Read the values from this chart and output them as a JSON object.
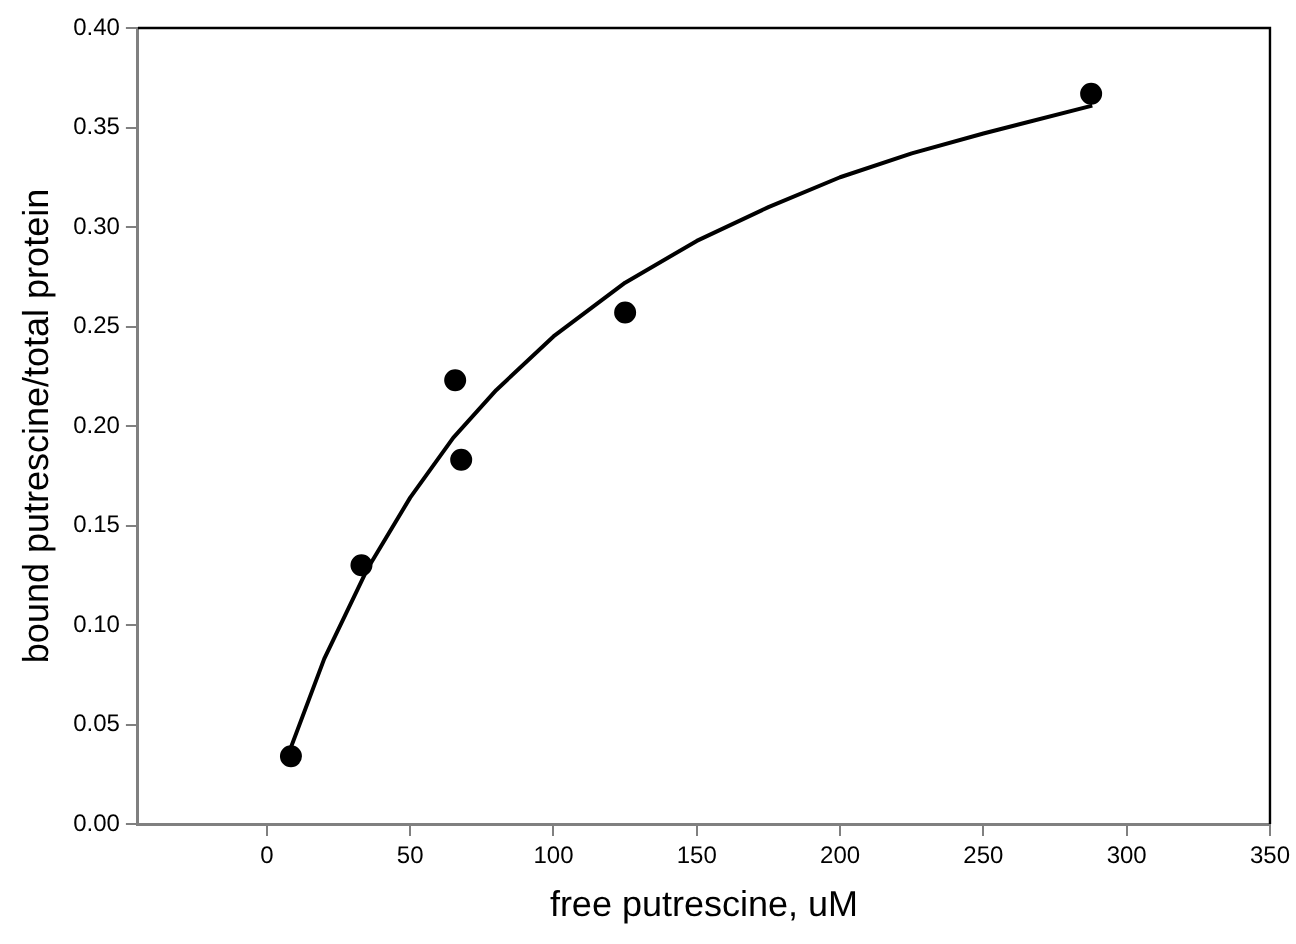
{
  "chart_data": {
    "type": "scatter",
    "xlabel": "free putrescine, uM",
    "ylabel": "bound putrescine/total protein",
    "xlim": [
      -45,
      350
    ],
    "xticks": [
      0,
      50,
      100,
      150,
      200,
      250,
      300,
      350
    ],
    "ylim": [
      0,
      0.4
    ],
    "yticks": [
      {
        "value": 0,
        "label": "0.00"
      },
      {
        "value": 0.05,
        "label": "0.05"
      },
      {
        "value": 0.1,
        "label": "0.10"
      },
      {
        "value": 0.15,
        "label": "0.15"
      },
      {
        "value": 0.2,
        "label": "0.20"
      },
      {
        "value": 0.25,
        "label": "0.25"
      },
      {
        "value": 0.3,
        "label": "0.30"
      },
      {
        "value": 0.35,
        "label": "0.35"
      },
      {
        "value": 0.4,
        "label": "0.40"
      }
    ],
    "grid": false,
    "legend": false,
    "series": [
      {
        "color": "#000000",
        "marker": "circle",
        "x": [
          8.4,
          33,
          65.7,
          67.8,
          125,
          287.6
        ],
        "values": [
          0.034,
          0.13,
          0.223,
          0.183,
          0.257,
          0.367
        ]
      },
      {
        "type": "line",
        "color": "#000000",
        "marker": "none",
        "line_style": "solid",
        "x": [
          8,
          20,
          35,
          50,
          65,
          80,
          100,
          125,
          150,
          175,
          200,
          225,
          250,
          288
        ],
        "values": [
          0.037,
          0.083,
          0.128,
          0.164,
          0.194,
          0.218,
          0.245,
          0.272,
          0.293,
          0.31,
          0.325,
          0.337,
          0.347,
          0.361
        ]
      }
    ]
  }
}
